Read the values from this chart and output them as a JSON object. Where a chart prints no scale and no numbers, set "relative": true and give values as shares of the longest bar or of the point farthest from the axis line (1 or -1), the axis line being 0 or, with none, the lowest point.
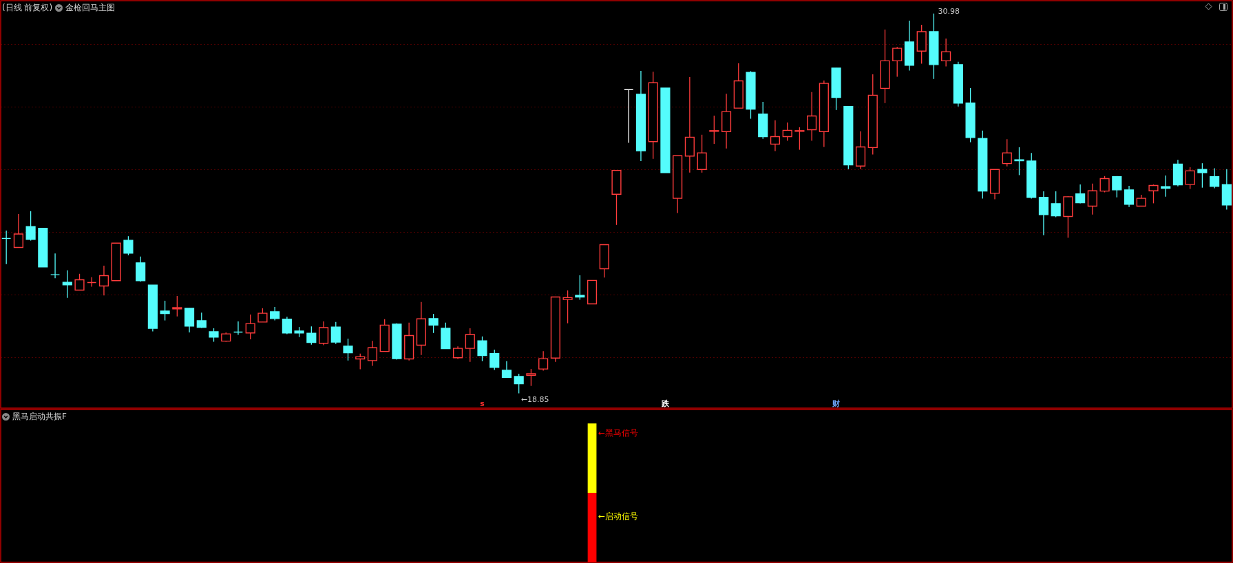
{
  "chart_data": [
    {
      "type": "candlestick",
      "title": "(日线 前复权)",
      "subtitle": "金枪回马主图",
      "categories": [
        null,
        null,
        null,
        null,
        null,
        null,
        null,
        null,
        null,
        null,
        null,
        null,
        null,
        null,
        null,
        null,
        null,
        null,
        null,
        null,
        null,
        null,
        null,
        null,
        null,
        null,
        null,
        null,
        null,
        null,
        null,
        null,
        null,
        null,
        null,
        null,
        null,
        null,
        null,
        null,
        null,
        null,
        null,
        null,
        null,
        null,
        null,
        null,
        null,
        null,
        null,
        null,
        null,
        null,
        null,
        null,
        null,
        null,
        null,
        null,
        null,
        null,
        null,
        null,
        null,
        null,
        null,
        null,
        null,
        null,
        null,
        null,
        null,
        null,
        null,
        null,
        null,
        null,
        null,
        null,
        null,
        null,
        null,
        null,
        null,
        null,
        null,
        null,
        null,
        null,
        null,
        null,
        null,
        null,
        null,
        null,
        null,
        null,
        null,
        null,
        null
      ],
      "ohlc": [
        [
          23.8,
          24.05,
          22.98,
          23.8
        ],
        [
          23.51,
          24.58,
          23.51,
          23.94
        ],
        [
          24.18,
          24.67,
          23.73,
          23.77
        ],
        [
          24.12,
          24.12,
          22.89,
          22.89
        ],
        [
          22.64,
          23.32,
          22.53,
          22.64
        ],
        [
          22.4,
          22.78,
          21.9,
          22.32
        ],
        [
          22.15,
          22.67,
          22.15,
          22.48
        ],
        [
          22.39,
          22.56,
          22.26,
          22.39
        ],
        [
          22.28,
          22.93,
          21.98,
          22.61
        ],
        [
          22.45,
          23.65,
          22.45,
          23.65
        ],
        [
          23.74,
          23.87,
          23.26,
          23.33
        ],
        [
          23.02,
          23.22,
          22.42,
          22.45
        ],
        [
          22.31,
          22.31,
          20.83,
          20.93
        ],
        [
          21.48,
          21.81,
          21.18,
          21.4
        ],
        [
          21.55,
          21.96,
          21.31,
          21.59
        ],
        [
          21.57,
          21.57,
          20.8,
          21.0
        ],
        [
          21.17,
          21.43,
          20.94,
          20.96
        ],
        [
          20.82,
          20.93,
          20.5,
          20.65
        ],
        [
          20.52,
          20.8,
          20.5,
          20.75
        ],
        [
          20.81,
          21.15,
          20.72,
          20.81
        ],
        [
          20.78,
          21.37,
          20.58,
          21.08
        ],
        [
          21.13,
          21.57,
          21.13,
          21.41
        ],
        [
          21.46,
          21.61,
          21.18,
          21.24
        ],
        [
          21.22,
          21.3,
          20.74,
          20.78
        ],
        [
          20.84,
          20.97,
          20.65,
          20.78
        ],
        [
          20.77,
          20.99,
          20.41,
          20.48
        ],
        [
          20.45,
          21.15,
          20.39,
          20.95
        ],
        [
          20.97,
          21.13,
          20.43,
          20.49
        ],
        [
          20.36,
          20.6,
          19.9,
          20.15
        ],
        [
          19.95,
          20.12,
          19.62,
          20.02
        ],
        [
          19.9,
          20.53,
          19.73,
          20.31
        ],
        [
          20.19,
          21.22,
          20.19,
          21.03
        ],
        [
          21.06,
          21.09,
          19.93,
          19.96
        ],
        [
          19.95,
          21.11,
          19.9,
          20.7
        ],
        [
          20.39,
          21.77,
          20.08,
          21.23
        ],
        [
          21.24,
          21.39,
          20.78,
          21.03
        ],
        [
          20.93,
          21.11,
          20.28,
          20.28
        ],
        [
          19.99,
          20.35,
          19.95,
          20.29
        ],
        [
          20.29,
          20.93,
          19.86,
          20.73
        ],
        [
          20.53,
          20.67,
          19.88,
          20.06
        ],
        [
          20.12,
          20.25,
          19.6,
          19.68
        ],
        [
          19.59,
          19.88,
          19.36,
          19.36
        ],
        [
          19.39,
          19.48,
          18.85,
          19.16
        ],
        [
          19.43,
          19.63,
          19.09,
          19.48
        ],
        [
          19.63,
          20.2,
          19.58,
          19.96
        ],
        [
          19.98,
          21.93,
          19.86,
          21.93
        ],
        [
          21.85,
          22.14,
          21.09,
          21.91
        ],
        [
          21.98,
          22.62,
          21.84,
          21.93
        ],
        [
          21.71,
          22.46,
          21.71,
          22.46
        ],
        [
          22.83,
          23.6,
          22.55,
          23.6
        ],
        [
          25.21,
          25.97,
          24.23,
          25.97
        ],
        [
          28.55,
          28.55,
          26.85,
          28.55
        ],
        [
          28.4,
          29.15,
          26.27,
          26.6
        ],
        [
          26.89,
          29.12,
          26.34,
          28.77
        ],
        [
          28.6,
          28.6,
          25.9,
          25.9
        ],
        [
          25.08,
          26.44,
          24.61,
          26.44
        ],
        [
          26.43,
          28.95,
          25.9,
          27.03
        ],
        [
          26.0,
          27.11,
          25.9,
          26.53
        ],
        [
          27.22,
          27.72,
          26.82,
          27.24
        ],
        [
          27.21,
          28.42,
          26.67,
          27.85
        ],
        [
          27.96,
          29.39,
          27.96,
          28.83
        ],
        [
          29.1,
          29.14,
          27.62,
          27.93
        ],
        [
          27.77,
          28.16,
          26.98,
          27.05
        ],
        [
          26.81,
          27.57,
          26.59,
          27.05
        ],
        [
          27.05,
          27.5,
          26.92,
          27.25
        ],
        [
          27.22,
          27.35,
          26.63,
          27.24
        ],
        [
          27.27,
          28.47,
          26.92,
          27.71
        ],
        [
          27.21,
          28.84,
          26.72,
          28.75
        ],
        [
          29.24,
          29.24,
          27.9,
          28.3
        ],
        [
          28.01,
          28.01,
          26.01,
          26.15
        ],
        [
          26.11,
          27.22,
          26.01,
          26.72
        ],
        [
          26.7,
          29.04,
          26.48,
          28.37
        ],
        [
          28.59,
          30.47,
          28.12,
          29.47
        ],
        [
          29.47,
          29.91,
          28.96,
          29.87
        ],
        [
          30.07,
          30.75,
          29.16,
          29.33
        ],
        [
          29.78,
          30.62,
          29.38,
          30.4
        ],
        [
          30.4,
          30.98,
          28.89,
          29.35
        ],
        [
          29.47,
          30.18,
          29.29,
          29.76
        ],
        [
          29.35,
          29.44,
          28.01,
          28.12
        ],
        [
          28.12,
          28.6,
          26.87,
          27.02
        ],
        [
          26.99,
          27.24,
          25.07,
          25.31
        ],
        [
          25.24,
          26.0,
          25.05,
          26.0
        ],
        [
          26.19,
          26.97,
          26.1,
          26.53
        ],
        [
          26.31,
          26.71,
          25.82,
          26.28
        ],
        [
          26.27,
          26.53,
          25.07,
          25.11
        ],
        [
          25.11,
          25.3,
          23.9,
          24.56
        ],
        [
          24.91,
          25.3,
          24.48,
          24.52
        ],
        [
          24.5,
          25.15,
          23.82,
          25.13
        ],
        [
          25.22,
          25.52,
          24.92,
          24.94
        ],
        [
          24.83,
          25.55,
          24.56,
          25.32
        ],
        [
          25.31,
          25.79,
          25.27,
          25.71
        ],
        [
          25.77,
          25.79,
          25.11,
          25.35
        ],
        [
          25.35,
          25.48,
          24.8,
          24.89
        ],
        [
          24.83,
          25.19,
          24.83,
          25.08
        ],
        [
          25.32,
          25.52,
          24.92,
          25.49
        ],
        [
          25.45,
          25.81,
          25.13,
          25.4
        ],
        [
          26.17,
          26.31,
          25.46,
          25.51
        ],
        [
          25.52,
          26.07,
          25.38,
          25.96
        ],
        [
          26.0,
          26.2,
          25.42,
          25.9
        ],
        [
          25.77,
          26.04,
          25.4,
          25.46
        ],
        [
          25.52,
          26.01,
          24.72,
          24.87
        ]
      ],
      "colors": [
        "#54fcfc",
        "#ff3c3c",
        "#54fcfc",
        "#54fcfc",
        "#54fcfc",
        "#54fcfc",
        "#ff3c3c",
        "#ff3c3c",
        "#ff3c3c",
        "#ff3c3c",
        "#54fcfc",
        "#54fcfc",
        "#54fcfc",
        "#54fcfc",
        "#ff3c3c",
        "#54fcfc",
        "#54fcfc",
        "#54fcfc",
        "#ff3c3c",
        "#54fcfc",
        "#ff3c3c",
        "#ff3c3c",
        "#54fcfc",
        "#54fcfc",
        "#54fcfc",
        "#54fcfc",
        "#ff3c3c",
        "#54fcfc",
        "#54fcfc",
        "#ff3c3c",
        "#ff3c3c",
        "#ff3c3c",
        "#54fcfc",
        "#ff3c3c",
        "#ff3c3c",
        "#54fcfc",
        "#54fcfc",
        "#ff3c3c",
        "#ff3c3c",
        "#54fcfc",
        "#54fcfc",
        "#54fcfc",
        "#54fcfc",
        "#ff3c3c",
        "#ff3c3c",
        "#ff3c3c",
        "#ff3c3c",
        "#54fcfc",
        "#ff3c3c",
        "#ff3c3c",
        "#ff3c3c",
        "#ffffff",
        "#54fcfc",
        "#ff3c3c",
        "#54fcfc",
        "#ff3c3c",
        "#ff3c3c",
        "#ff3c3c",
        "#ff3c3c",
        "#ff3c3c",
        "#ff3c3c",
        "#54fcfc",
        "#54fcfc",
        "#ff3c3c",
        "#ff3c3c",
        "#ff3c3c",
        "#ff3c3c",
        "#ff3c3c",
        "#54fcfc",
        "#54fcfc",
        "#ff3c3c",
        "#ff3c3c",
        "#ff3c3c",
        "#ff3c3c",
        "#54fcfc",
        "#ff3c3c",
        "#54fcfc",
        "#ff3c3c",
        "#54fcfc",
        "#54fcfc",
        "#54fcfc",
        "#ff3c3c",
        "#ff3c3c",
        "#54fcfc",
        "#54fcfc",
        "#54fcfc",
        "#54fcfc",
        "#ff3c3c",
        "#54fcfc",
        "#ff3c3c",
        "#ff3c3c",
        "#54fcfc",
        "#54fcfc",
        "#ff3c3c",
        "#ff3c3c",
        "#54fcfc",
        "#54fcfc",
        "#ff3c3c",
        "#54fcfc",
        "#54fcfc",
        "#54fcfc"
      ],
      "ylim": [
        18.38,
        31.39
      ],
      "yticks": [
        {
          "value": 20,
          "label": null
        },
        {
          "value": 22,
          "label": null
        },
        {
          "value": 24,
          "label": null
        },
        {
          "value": 26,
          "label": null
        },
        {
          "value": 28,
          "label": null
        },
        {
          "value": 30,
          "label": null
        }
      ],
      "grid": true,
      "annotations": [
        "30.98",
        "←18.85",
        "s",
        "跌",
        "财"
      ]
    },
    {
      "type": "bar",
      "title": "黑马启动共振F",
      "stacked": true,
      "relative": true,
      "categories": [
        null,
        null,
        null,
        null,
        null,
        null,
        null,
        null,
        null,
        null,
        null,
        null,
        null,
        null,
        null,
        null,
        null,
        null,
        null,
        null,
        null,
        null,
        null,
        null,
        null,
        null,
        null,
        null,
        null,
        null,
        null,
        null,
        null,
        null,
        null,
        null,
        null,
        null,
        null,
        null,
        null,
        null,
        null,
        null,
        null,
        null,
        null,
        null,
        null,
        null,
        null,
        null,
        null,
        null,
        null,
        null,
        null,
        null,
        null,
        null,
        null,
        null,
        null,
        null,
        null,
        null,
        null,
        null,
        null,
        null,
        null,
        null,
        null,
        null,
        null,
        null,
        null,
        null,
        null,
        null,
        null,
        null,
        null,
        null,
        null,
        null,
        null,
        null,
        null,
        null,
        null,
        null,
        null,
        null,
        null,
        null,
        null,
        null,
        null,
        null,
        null
      ],
      "series": [
        {
          "color": "#ff0000",
          "values": [
            null,
            null,
            null,
            null,
            null,
            null,
            null,
            null,
            null,
            null,
            null,
            null,
            null,
            null,
            null,
            null,
            null,
            null,
            null,
            null,
            null,
            null,
            null,
            null,
            null,
            null,
            null,
            null,
            null,
            null,
            null,
            null,
            null,
            null,
            null,
            null,
            null,
            null,
            null,
            null,
            null,
            null,
            null,
            null,
            null,
            null,
            null,
            null,
            0.5,
            null,
            null,
            null,
            null,
            null,
            null,
            null,
            null,
            null,
            null,
            null,
            null,
            null,
            null,
            null,
            null,
            null,
            null,
            null,
            null,
            null,
            null,
            null,
            null,
            null,
            null,
            null,
            null,
            null,
            null,
            null,
            null,
            null,
            null,
            null,
            null,
            null,
            null,
            null,
            null,
            null,
            null,
            null,
            null,
            null,
            null,
            null,
            null,
            null,
            null,
            null,
            null
          ]
        },
        {
          "color": "#ffff00",
          "values": [
            null,
            null,
            null,
            null,
            null,
            null,
            null,
            null,
            null,
            null,
            null,
            null,
            null,
            null,
            null,
            null,
            null,
            null,
            null,
            null,
            null,
            null,
            null,
            null,
            null,
            null,
            null,
            null,
            null,
            null,
            null,
            null,
            null,
            null,
            null,
            null,
            null,
            null,
            null,
            null,
            null,
            null,
            null,
            null,
            null,
            null,
            null,
            null,
            0.5,
            null,
            null,
            null,
            null,
            null,
            null,
            null,
            null,
            null,
            null,
            null,
            null,
            null,
            null,
            null,
            null,
            null,
            null,
            null,
            null,
            null,
            null,
            null,
            null,
            null,
            null,
            null,
            null,
            null,
            null,
            null,
            null,
            null,
            null,
            null,
            null,
            null,
            null,
            null,
            null,
            null,
            null,
            null,
            null,
            null,
            null,
            null,
            null,
            null,
            null,
            null,
            null
          ]
        }
      ],
      "annotations": [
        "←黑马信号",
        "←启动信号"
      ]
    }
  ]
}
